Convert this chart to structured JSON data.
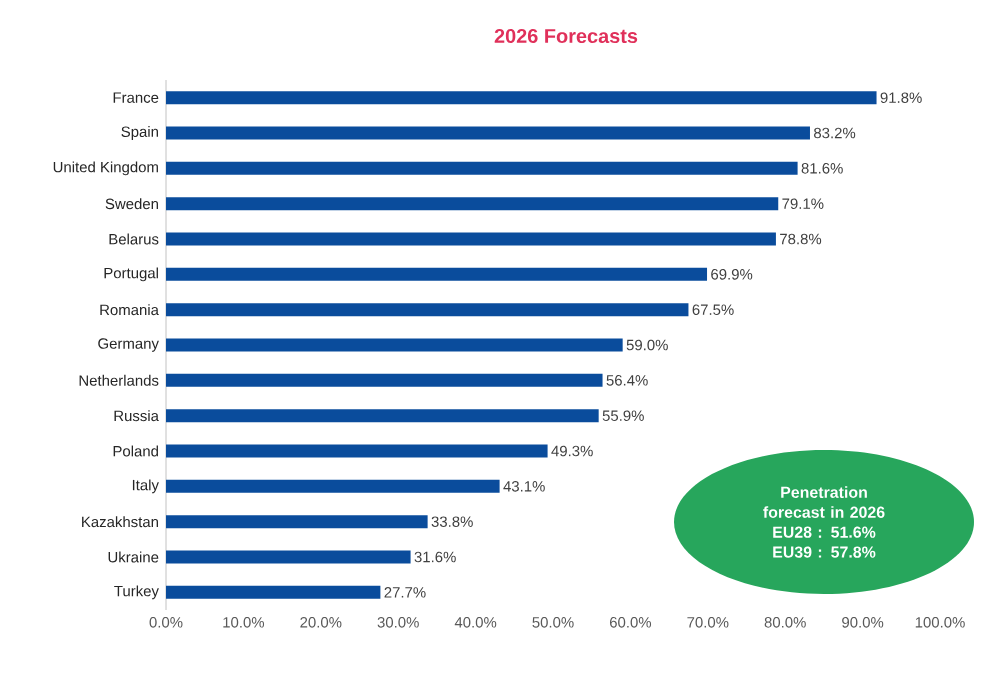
{
  "chart_data": {
    "type": "bar",
    "orientation": "horizontal",
    "title": "2026 Forecasts",
    "categories": [
      "France",
      "Spain",
      "United Kingdom",
      "Sweden",
      "Belarus",
      "Portugal",
      "Romania",
      "Germany",
      "Netherlands",
      "Russia",
      "Poland",
      "Italy",
      "Kazakhstan",
      "Ukraine",
      "Turkey"
    ],
    "values": [
      91.8,
      83.2,
      81.6,
      79.1,
      78.8,
      69.9,
      67.5,
      59.0,
      56.4,
      55.9,
      49.3,
      43.1,
      33.8,
      31.6,
      27.7
    ],
    "value_labels": [
      "91.8%",
      "83.2%",
      "81.6%",
      "79.1%",
      "78.8%",
      "69.9%",
      "67.5%",
      "59.0%",
      "56.4%",
      "55.9%",
      "49.3%",
      "43.1%",
      "33.8%",
      "31.6%",
      "27.7%"
    ],
    "color": "#0a4c9c",
    "xlim": [
      0,
      100
    ],
    "xticks": [
      {
        "value": 0,
        "label": "0.0%"
      },
      {
        "value": 10,
        "label": "10.0%"
      },
      {
        "value": 20,
        "label": "20.0%"
      },
      {
        "value": 30,
        "label": "30.0%"
      },
      {
        "value": 40,
        "label": "40.0%"
      },
      {
        "value": 50,
        "label": "50.0%"
      },
      {
        "value": 60,
        "label": "60.0%"
      },
      {
        "value": 70,
        "label": "70.0%"
      },
      {
        "value": 80,
        "label": "80.0%"
      },
      {
        "value": 90,
        "label": "90.0%"
      },
      {
        "value": 100,
        "label": "100.0%"
      }
    ],
    "annotations": [
      "Penetration forecast in 2026",
      "EU28 : 51.6%",
      "EU39 : 57.8%"
    ]
  }
}
